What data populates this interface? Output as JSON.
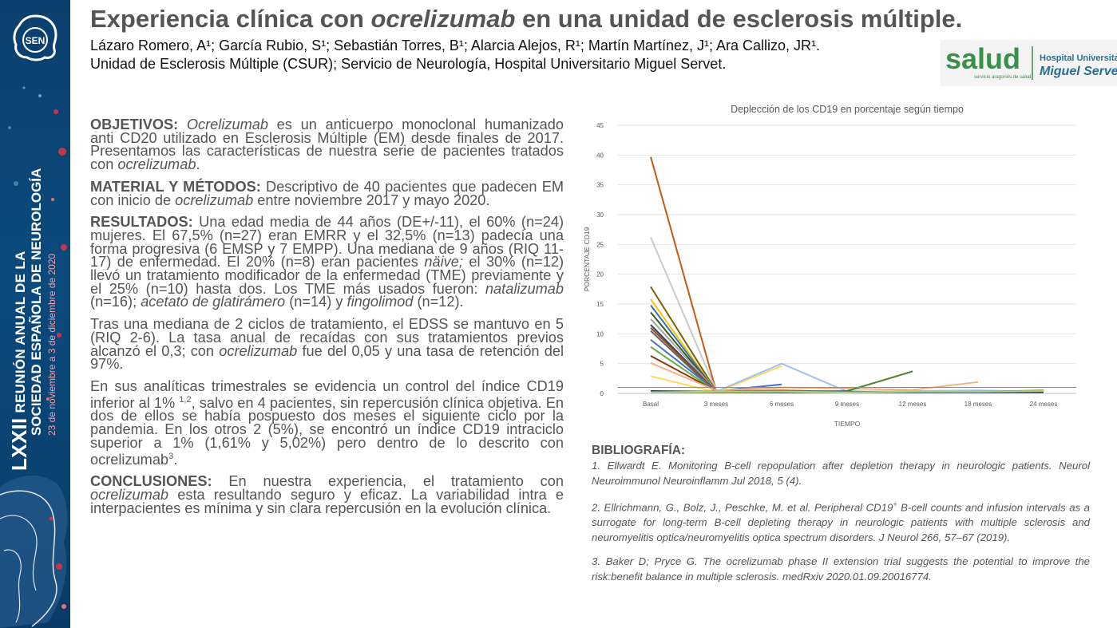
{
  "header": {
    "title_a": "Experiencia clínica con ",
    "title_b": "ocrelizumab",
    "title_c": " en una unidad de esclerosis múltiple.",
    "authors": "Lázaro Romero, A¹; García Rubio, S¹; Sebastián Torres, B¹; Alarcia Alejos, R¹; Martín Martínez, J¹; Ara Callizo, JR¹.",
    "affiliation": "Unidad de Esclerosis Múltiple (CSUR); Servicio de Neurología, Hospital Universitario Miguel Servet."
  },
  "sidebar": {
    "logo_text": "SEN",
    "line_big": "LXXII",
    "line1": "REUNIÓN ANUAL DE LA",
    "line2": "SOCIEDAD ESPAÑOLA DE NEUROLOGÍA",
    "line3": "23 de noviembre a 3 de diciembre de 2020"
  },
  "salud_logo": {
    "brand": "salud",
    "sub": "servicio aragonés de salud",
    "hospital1": "Hospital Universitario",
    "hospital2": "Miguel Servet"
  },
  "body": {
    "obj_head": "OBJETIVOS:",
    "obj_a": " ",
    "obj_b": "Ocrelizumab",
    "obj_c": " es un anticuerpo monoclonal humanizado anti CD20 utilizado en Esclerosis Múltiple (EM) desde finales de 2017. Presentamos las características de nuestra serie de pacientes tratados con ",
    "obj_d": "ocrelizumab",
    "obj_e": ".",
    "met_head": "MATERIAL Y MÉTODOS:",
    "met_a": " Descriptivo de 40 pacientes que padecen EM con inicio de ",
    "met_b": "ocrelizumab",
    "met_c": " entre noviembre 2017 y mayo 2020.",
    "res_head": "RESULTADOS:",
    "res_a": " Una edad media de 44 años (DE+/-11), el 60% (n=24) mujeres. El 67,5% (n=27) eran EMRR y el 32,5% (n=13) padecía una forma progresiva (6 EMSP y 7 EMPP). Una mediana de 9 años (RIQ 11-17) de enfermedad. El 20% (n=8) eran pacientes ",
    "res_b": "näive;",
    "res_c": " el 30% (n=12) llevó un tratamiento modificador de la enfermedad (TME) previamente y el 25% (n=10) hasta dos. Los TME más usados fueron: ",
    "res_d": "natalizumab",
    "res_e": " (n=16); ",
    "res_f": "acetato de glatirámero",
    "res_g": " (n=14) y ",
    "res_h": "fingolimod",
    "res_i": " (n=12).",
    "p4_a": "Tras una mediana de 2 ciclos de tratamiento, el EDSS se mantuvo en 5 (RIQ 2-6). La tasa anual de recaídas con sus tratamientos previos alcanzó el 0,3; con ",
    "p4_b": "ocrelizumab",
    "p4_c": " fue del 0,05 y una tasa de retención del 97%.",
    "p5_a": "En sus analíticas trimestrales se evidencia un control del índice CD19 inferior al 1% ",
    "p5_sup": "1,2",
    "p5_b": ", salvo en 4 pacientes, sin repercusión clínica objetiva. En dos de ellos se había pospuesto dos meses el siguiente ciclo por la pandemia. En los otros 2 (5%), se encontró un índice CD19 intraciclo superior a 1% (1,61% y 5,02%) pero dentro de lo descrito con ocrelizumab",
    "p5_sup2": "3",
    "p5_c": ".",
    "con_head": "CONCLUSIONES:",
    "con_a": " En nuestra experiencia, el tratamiento con ",
    "con_b": "ocrelizumab",
    "con_c": " esta resultando seguro y eficaz. La variabilidad intra e interpacientes es mínima y sin clara repercusión en la evolución clínica."
  },
  "biblio": {
    "heading": "BIBLIOGRAFÍA:",
    "ref1": "1. Ellwardt E. Monitoring B-cell repopulation after depletion therapy in neurologic patients. Neurol Neuroimmunol Neuroinflamm Jul 2018, 5 (4).",
    "ref2_a": "2. Ellrichmann, G., Bolz, J., Peschke, M. et al. Peripheral CD19",
    "ref2_sup": "+",
    "ref2_b": " B-cell counts and infusion intervals as a surrogate for long-term B-cell depleting therapy in neurologic patients with multiple sclerosis and neuromyelitis optica/neuromyelitis optica spectrum disorders. J Neurol 266, 57–67 (2019).",
    "ref3": "3. Baker D; Pryce G. The ocrelizumab phase II extension trial suggests the potential to improve the risk:benefit balance in multiple sclerosis. medRxiv 2020.01.09.20016774."
  },
  "chart_data": {
    "type": "line",
    "title": "Deplección de los CD19 en porcentaje según tiempo",
    "xlabel": "TIEMPO",
    "ylabel": "PORCENTAJE CD19",
    "categories": [
      "Basal",
      "3 meses",
      "6 meses",
      "9 meses",
      "12 meses",
      "18 meses",
      "24 meses"
    ],
    "ylim": [
      0,
      45
    ],
    "yticks": [
      0,
      5,
      10,
      15,
      20,
      25,
      30,
      35,
      40,
      45
    ],
    "grid": true,
    "legend": "none",
    "reference_line": {
      "value": 1,
      "color": "#e06666"
    },
    "series": [
      {
        "color": "#c55a11",
        "values": [
          39.7,
          0.4,
          0.5,
          0.3,
          null,
          null,
          null
        ]
      },
      {
        "color": "#c9c9c9",
        "values": [
          26.2,
          0.5,
          null,
          null,
          null,
          null,
          null
        ]
      },
      {
        "color": "#7f6000",
        "values": [
          17.9,
          0.4,
          null,
          null,
          null,
          null,
          null
        ]
      },
      {
        "color": "#ffc000",
        "values": [
          15.8,
          0.3,
          null,
          null,
          null,
          null,
          null
        ]
      },
      {
        "color": "#2e75b6",
        "values": [
          14.8,
          0.3,
          null,
          null,
          null,
          null,
          null
        ]
      },
      {
        "color": "#375623",
        "values": [
          13.6,
          0.3,
          null,
          null,
          null,
          null,
          null
        ]
      },
      {
        "color": "#a5a5a5",
        "values": [
          12.5,
          0.4,
          null,
          null,
          null,
          null,
          null
        ]
      },
      {
        "color": "#264478",
        "values": [
          11.5,
          0.3,
          null,
          null,
          null,
          null,
          null
        ]
      },
      {
        "color": "#9e480e",
        "values": [
          11.0,
          0.4,
          null,
          null,
          null,
          null,
          null
        ]
      },
      {
        "color": "#636363",
        "values": [
          10.5,
          0.2,
          null,
          null,
          null,
          null,
          null
        ]
      },
      {
        "color": "#4472c4",
        "values": [
          9.0,
          0.4,
          1.5,
          null,
          null,
          null,
          null
        ]
      },
      {
        "color": "#70ad47",
        "values": [
          7.8,
          0.3,
          null,
          null,
          null,
          null,
          null
        ]
      },
      {
        "color": "#843c0c",
        "values": [
          6.3,
          0.4,
          null,
          null,
          null,
          null,
          null
        ]
      },
      {
        "color": "#f4b183",
        "values": [
          5.1,
          0.5,
          1.0,
          0.8,
          0.6,
          1.9,
          null
        ]
      },
      {
        "color": "#ffd966",
        "values": [
          2.9,
          0.2,
          4.6,
          null,
          null,
          null,
          null
        ]
      },
      {
        "color": "#9dc3e6",
        "values": [
          0.3,
          0.3,
          5.0,
          0.3,
          0.4,
          0.5,
          0.3
        ]
      },
      {
        "color": "#548235",
        "values": [
          0.2,
          0.2,
          0.3,
          0.4,
          3.7,
          null,
          null
        ]
      },
      {
        "color": "#808000",
        "values": [
          0.3,
          0.2,
          0.2,
          0.2,
          0.2,
          0.3,
          0.5
        ]
      },
      {
        "color": "#203864",
        "values": [
          0.4,
          0.3,
          0.2,
          0.3,
          0.2,
          0.2,
          0.2
        ]
      },
      {
        "color": "#a9d18e",
        "values": [
          0.2,
          0.3,
          0.3,
          0.2,
          0.3,
          0.3,
          0.4
        ]
      }
    ]
  }
}
